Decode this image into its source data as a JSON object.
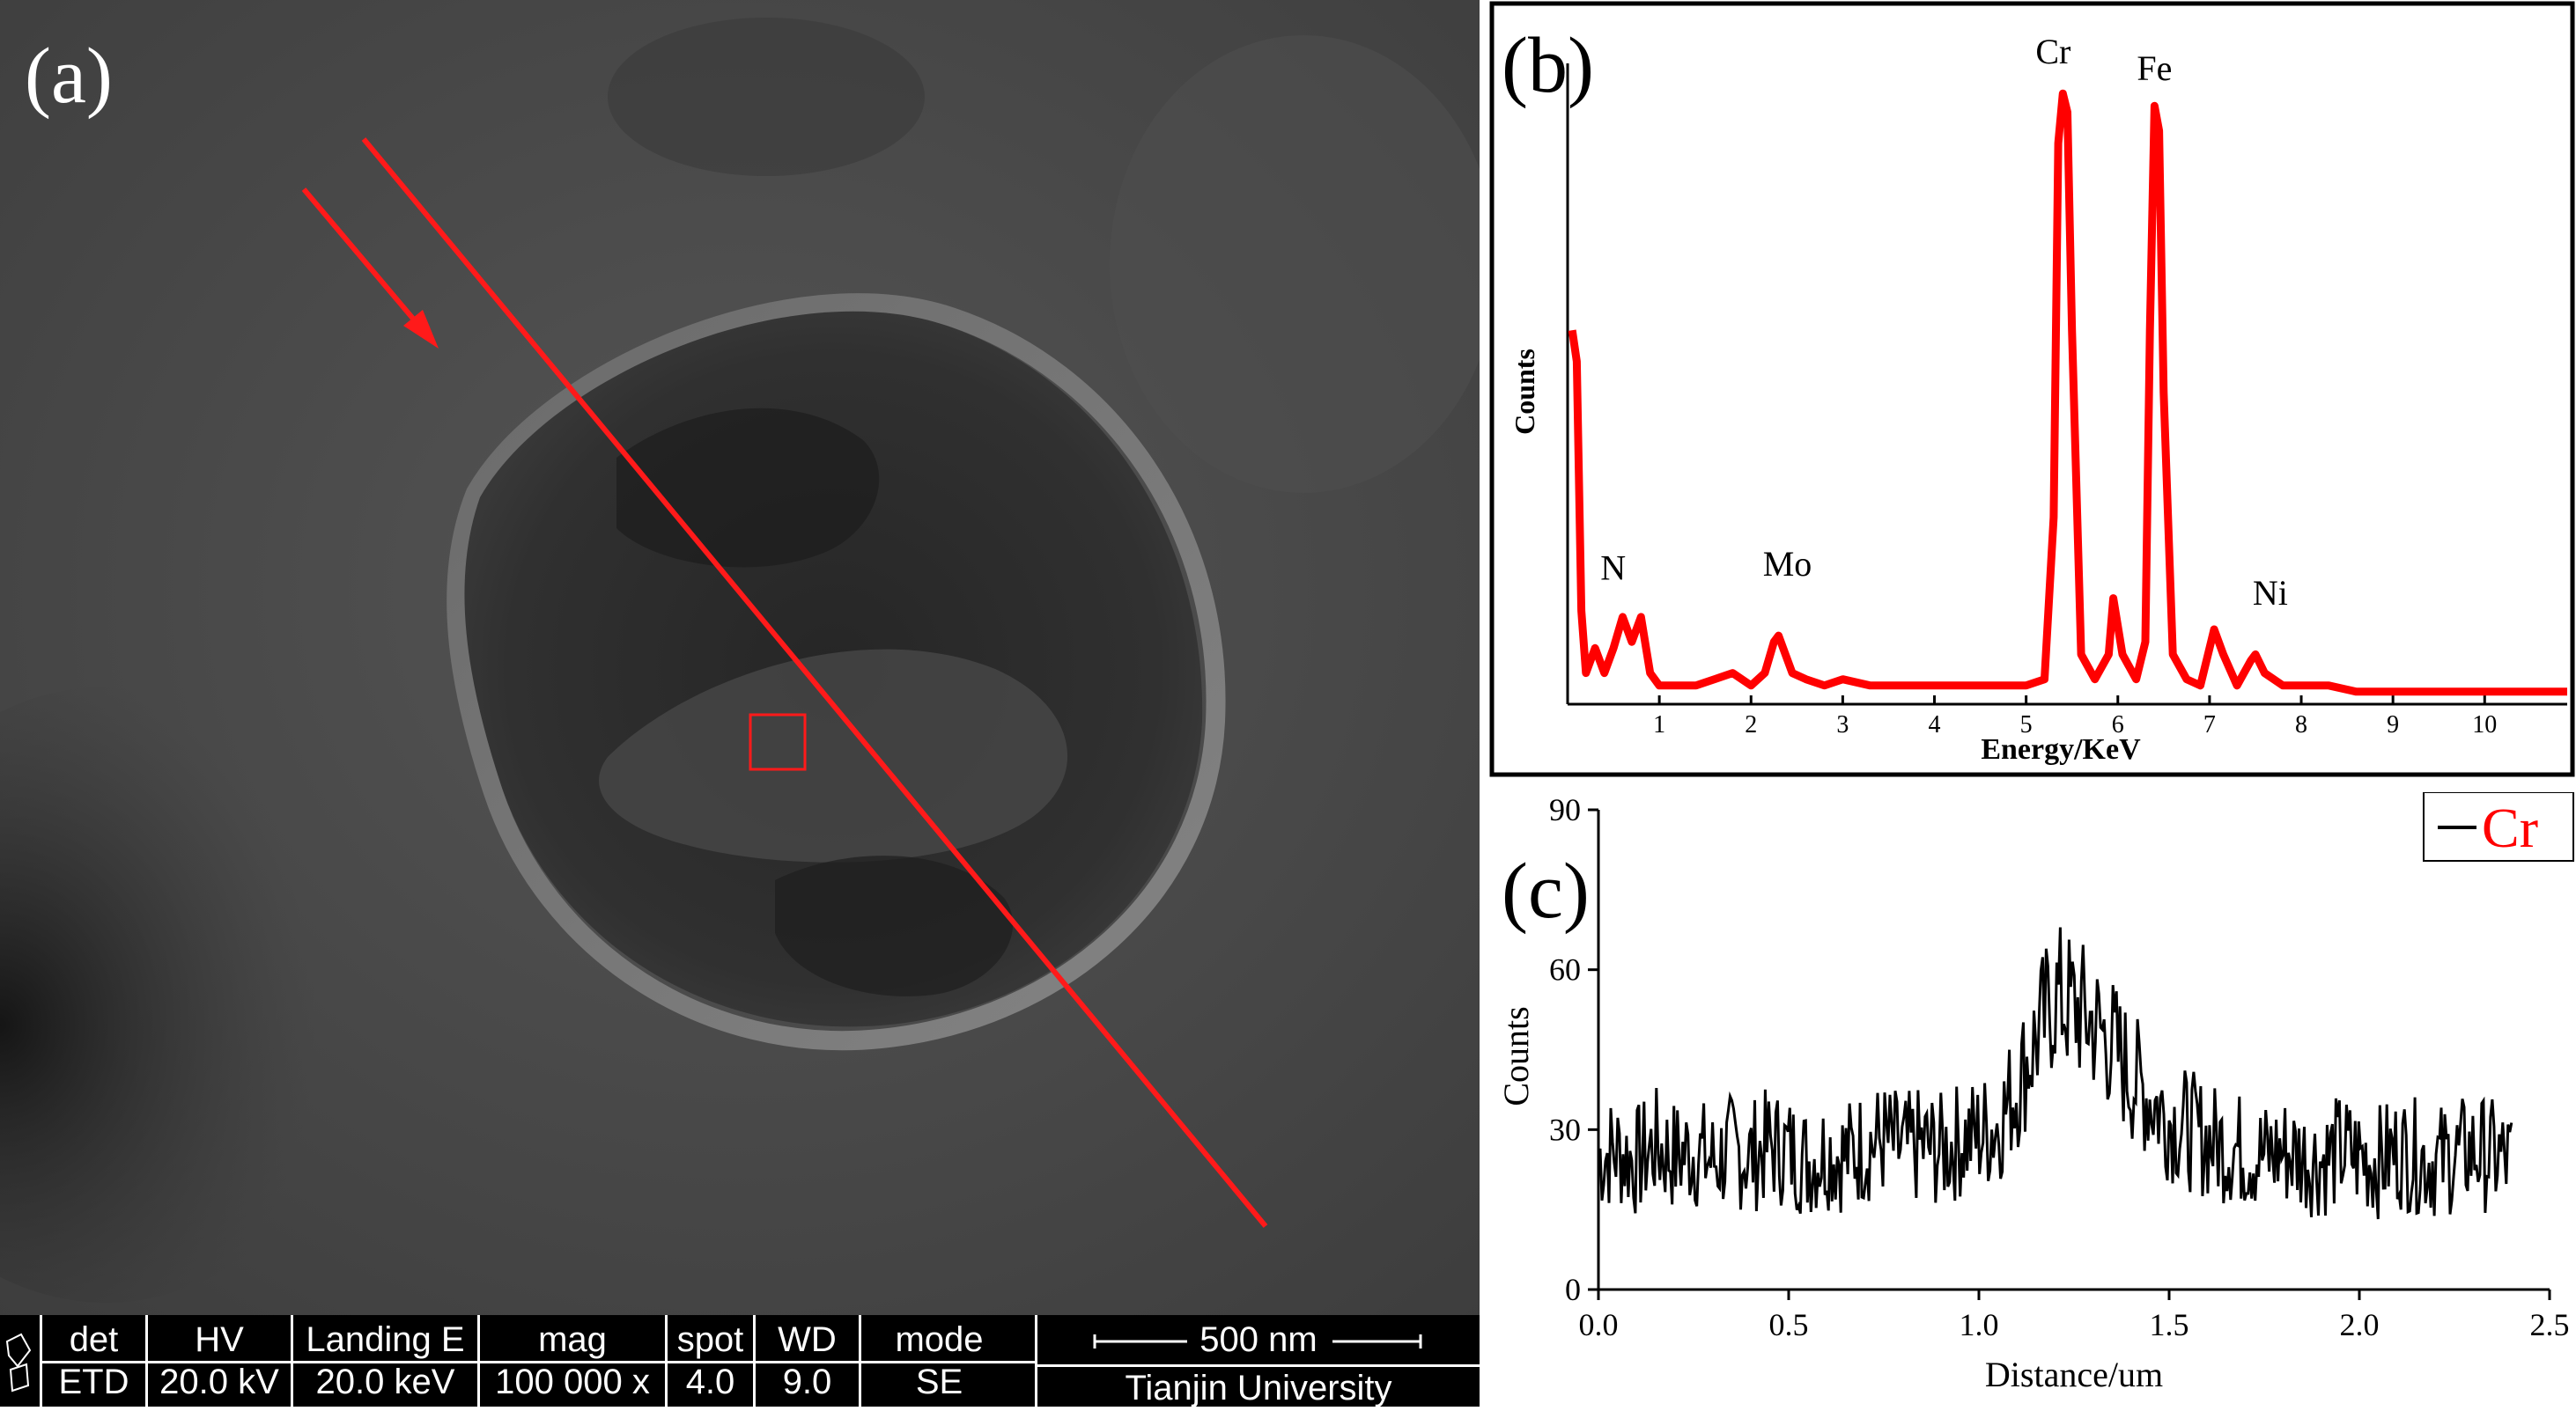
{
  "panel_a": {
    "label": "(a)",
    "sem_info": {
      "columns": [
        {
          "header": "det",
          "value": "ETD"
        },
        {
          "header": "HV",
          "value": "20.0 kV"
        },
        {
          "header": "Landing E",
          "value": "20.0 keV"
        },
        {
          "header": "mag",
          "value": "100 000 x"
        },
        {
          "header": "spot",
          "value": "4.0"
        },
        {
          "header": "WD",
          "value": "9.0 mm"
        },
        {
          "header": "mode",
          "value": "SE"
        }
      ],
      "scale_label": "500 nm",
      "organization": "Tianjin University"
    },
    "colors": {
      "line_scan": "#ff1a1a",
      "background": "#474747"
    }
  },
  "chart_data": [
    {
      "type": "line",
      "panel_label": "(b)",
      "xlabel": "Energy/KeV",
      "ylabel": "Counts",
      "xlim": [
        0,
        10.9
      ],
      "ylim": [
        0,
        100
      ],
      "xticks": [
        1,
        2,
        3,
        4,
        5,
        6,
        7,
        8,
        9,
        10
      ],
      "color": "#ff0000",
      "peaks": [
        {
          "label": "N",
          "x": 0.4,
          "height": 16
        },
        {
          "label": "Mo",
          "x": 2.3,
          "height": 15
        },
        {
          "label": "Cr",
          "x": 5.41,
          "height": 100
        },
        {
          "label": "Fe",
          "x": 6.4,
          "height": 97
        },
        {
          "label": "Ni",
          "x": 7.47,
          "height": 12
        }
      ],
      "series": [
        {
          "x": [
            0.05,
            0.1,
            0.15,
            0.2,
            0.3,
            0.4,
            0.5,
            0.6,
            0.7,
            0.8,
            0.9,
            1.0,
            1.2,
            1.4,
            1.6,
            1.8,
            2.0,
            2.15,
            2.25,
            2.3,
            2.35,
            2.45,
            2.6,
            2.8,
            3.0,
            3.3,
            3.6,
            3.9,
            4.2,
            4.5,
            4.8,
            5.0,
            5.2,
            5.3,
            5.35,
            5.4,
            5.45,
            5.5,
            5.6,
            5.75,
            5.9,
            5.95,
            6.05,
            6.2,
            6.3,
            6.35,
            6.4,
            6.45,
            6.5,
            6.6,
            6.75,
            6.9,
            7.0,
            7.05,
            7.15,
            7.3,
            7.45,
            7.5,
            7.6,
            7.8,
            8.0,
            8.3,
            8.6,
            8.9,
            9.2,
            9.5,
            9.8,
            10.1,
            10.4,
            10.7,
            10.9
          ],
          "y": [
            60,
            55,
            15,
            5,
            9,
            5,
            9,
            14,
            10,
            14,
            5,
            3,
            3,
            3,
            4,
            5,
            3,
            5,
            10,
            11,
            9,
            5,
            4,
            3,
            4,
            3,
            3,
            3,
            3,
            3,
            3,
            3,
            4,
            30,
            90,
            98,
            95,
            60,
            8,
            4,
            8,
            17,
            8,
            4,
            10,
            60,
            96,
            92,
            50,
            8,
            4,
            3,
            9,
            12,
            8,
            3,
            7,
            8,
            5,
            3,
            3,
            3,
            2,
            2,
            2,
            2,
            2,
            2,
            2,
            2,
            2
          ]
        }
      ]
    },
    {
      "type": "line",
      "panel_label": "(c)",
      "xlabel": "Distance/um",
      "ylabel": "Counts",
      "xlim": [
        0,
        2.5
      ],
      "ylim": [
        0,
        90
      ],
      "xticks": [
        0.0,
        0.5,
        1.0,
        1.5,
        2.0,
        2.5
      ],
      "yticks": [
        0,
        30,
        60,
        90
      ],
      "legend": "Cr",
      "legend_color": "#ff0000",
      "color": "#000000",
      "series": [
        {
          "name": "Cr",
          "x": [
            0.0,
            0.05,
            0.1,
            0.15,
            0.2,
            0.25,
            0.3,
            0.35,
            0.4,
            0.45,
            0.5,
            0.55,
            0.6,
            0.65,
            0.7,
            0.75,
            0.8,
            0.85,
            0.9,
            0.95,
            1.0,
            1.05,
            1.1,
            1.15,
            1.2,
            1.25,
            1.3,
            1.35,
            1.4,
            1.45,
            1.5,
            1.55,
            1.6,
            1.65,
            1.7,
            1.75,
            1.8,
            1.85,
            1.9,
            1.95,
            2.0,
            2.05,
            2.1,
            2.15,
            2.2,
            2.25,
            2.3,
            2.35,
            2.4
          ],
          "y": [
            25,
            26,
            24,
            27,
            25,
            26,
            24,
            26,
            25,
            27,
            26,
            24,
            26,
            25,
            27,
            28,
            26,
            27,
            26,
            28,
            29,
            31,
            38,
            47,
            55,
            53,
            50,
            46,
            40,
            36,
            32,
            30,
            28,
            27,
            26,
            25,
            26,
            25,
            24,
            26,
            25,
            24,
            26,
            25,
            24,
            25,
            26,
            25,
            24
          ]
        }
      ]
    }
  ]
}
